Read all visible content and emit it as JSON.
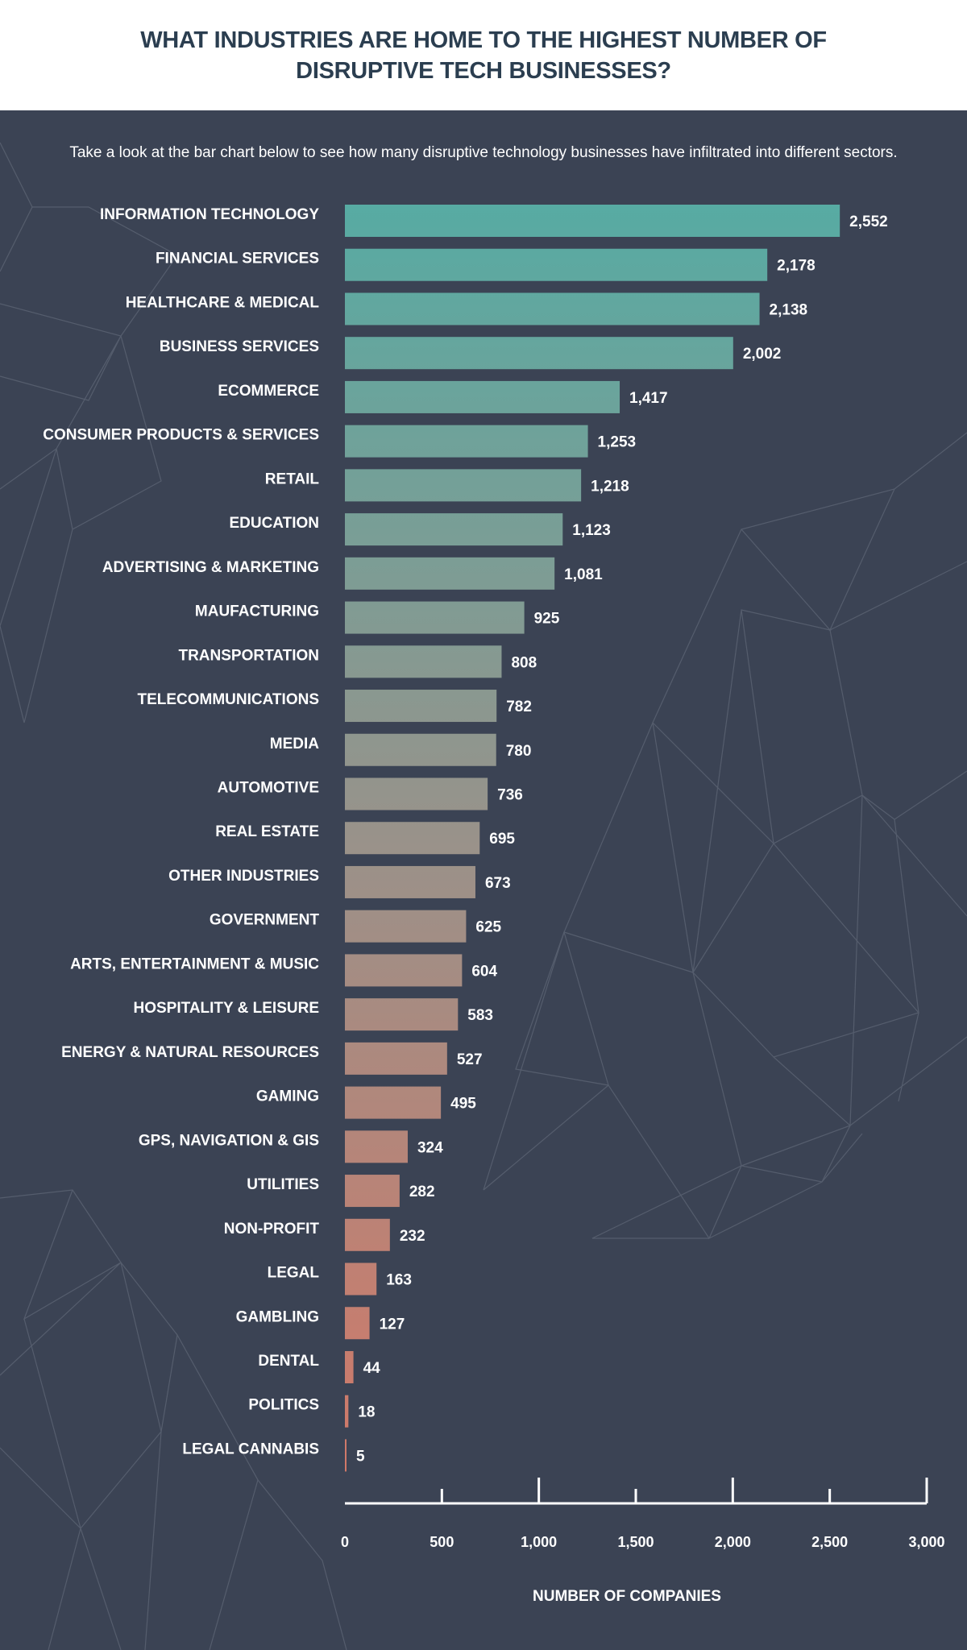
{
  "title": "WHAT INDUSTRIES ARE HOME TO THE HIGHEST NUMBER OF DISRUPTIVE TECH BUSINESSES?",
  "subtitle": "Take a look at the bar chart below to see how many disruptive technology businesses have infiltrated into different sectors.",
  "colors": {
    "background": "#3b4354",
    "header_bg": "#ffffff",
    "title": "#2b3e50",
    "bar_top": "#57aba3",
    "bar_middle": "#99928a",
    "bar_bottom": "#d27868",
    "text": "#ffffff"
  },
  "chart_data": {
    "type": "bar",
    "orientation": "horizontal",
    "title": "WHAT INDUSTRIES ARE HOME TO THE HIGHEST NUMBER OF DISRUPTIVE TECH BUSINESSES?",
    "xlabel": "NUMBER OF COMPANIES",
    "ylabel": "",
    "xlim": [
      0,
      3000
    ],
    "x_ticks": [
      "0",
      "500",
      "1,000",
      "1,500",
      "2,000",
      "2,500",
      "3,000"
    ],
    "grid": false,
    "legend": "none",
    "categories": [
      "INFORMATION TECHNOLOGY",
      "FINANCIAL SERVICES",
      "HEALTHCARE & MEDICAL",
      "BUSINESS SERVICES",
      "ECOMMERCE",
      "CONSUMER PRODUCTS & SERVICES",
      "RETAIL",
      "EDUCATION",
      "ADVERTISING & MARKETING",
      "MAUFACTURING",
      "TRANSPORTATION",
      "TELECOMMUNICATIONS",
      "MEDIA",
      "AUTOMOTIVE",
      "REAL ESTATE",
      "OTHER INDUSTRIES",
      "GOVERNMENT",
      "ARTS, ENTERTAINMENT & MUSIC",
      "HOSPITALITY & LEISURE",
      "ENERGY & NATURAL RESOURCES",
      "GAMING",
      "GPS, NAVIGATION & GIS",
      "UTILITIES",
      "NON-PROFIT",
      "LEGAL",
      "GAMBLING",
      "DENTAL",
      "POLITICS",
      "LEGAL CANNABIS"
    ],
    "values": [
      2552,
      2178,
      2138,
      2002,
      1417,
      1253,
      1218,
      1123,
      1081,
      925,
      808,
      782,
      780,
      736,
      695,
      673,
      625,
      604,
      583,
      527,
      495,
      324,
      282,
      232,
      163,
      127,
      44,
      18,
      5
    ],
    "value_labels": [
      "2,552",
      "2,178",
      "2,138",
      "2,002",
      "1,417",
      "1,253",
      "1,218",
      "1,123",
      "1,081",
      "925",
      "808",
      "782",
      "780",
      "736",
      "695",
      "673",
      "625",
      "604",
      "583",
      "527",
      "495",
      "324",
      "282",
      "232",
      "163",
      "127",
      "44",
      "18",
      "5"
    ]
  }
}
